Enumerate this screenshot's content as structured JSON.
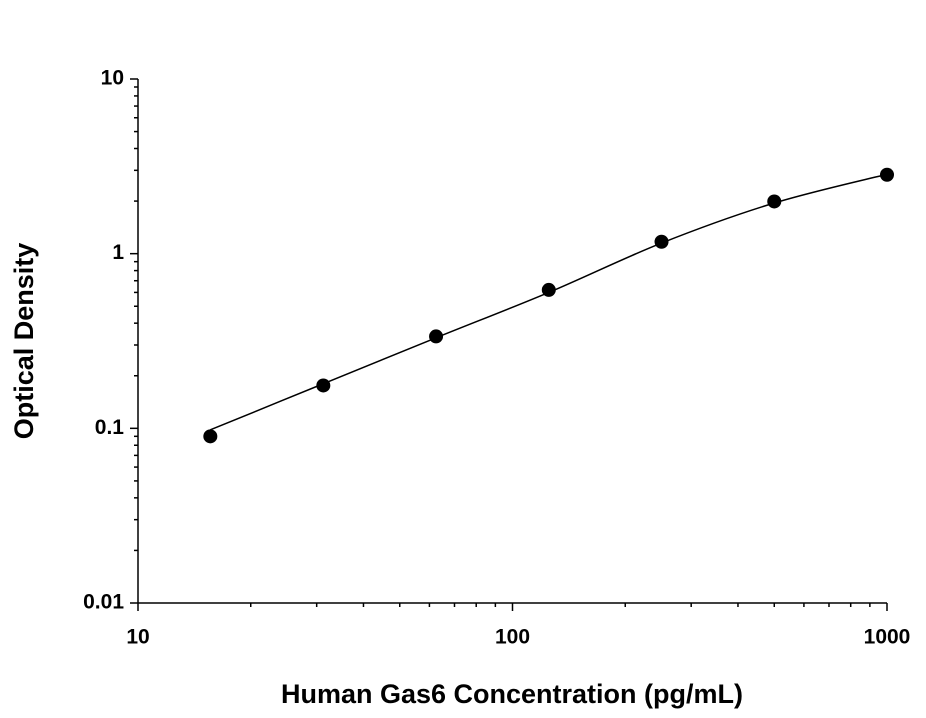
{
  "chart_data": {
    "type": "scatter",
    "xlabel": "Human Gas6 Concentration (pg/mL)",
    "ylabel": "Optical Density",
    "x": [
      15.6,
      31.25,
      62.5,
      125,
      250,
      500,
      1000
    ],
    "series": [
      {
        "color": "#000000",
        "marker": "circle",
        "values": [
          0.09,
          0.176,
          0.336,
          0.62,
          1.17,
          1.99,
          2.83
        ]
      },
      {
        "color": "#000000",
        "style": "line",
        "values": [
          0.098,
          0.18,
          0.33,
          0.6,
          1.15,
          1.95,
          2.85
        ]
      }
    ],
    "xscale": "log",
    "yscale": "log",
    "xlim": [
      10,
      1000
    ],
    "ylim": [
      0.01,
      10
    ],
    "xticks": [
      10,
      100,
      1000
    ],
    "yticks": [
      0.01,
      0.1,
      1,
      10
    ],
    "grid": false
  }
}
